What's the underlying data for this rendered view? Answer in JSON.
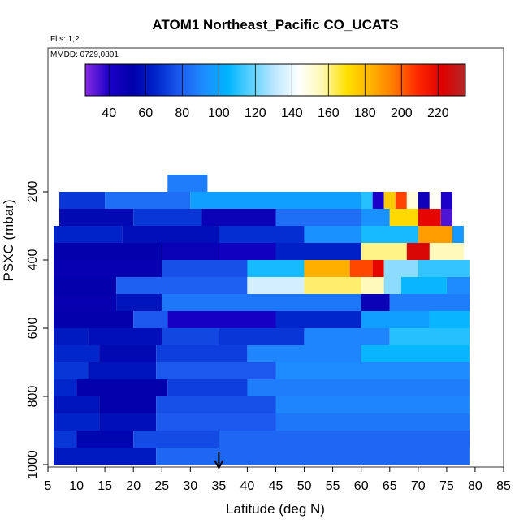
{
  "chart_data": {
    "type": "heatmap",
    "title": "ATOM1 Northeast_Pacific CO_UCATS",
    "annotations": {
      "flights": "Flts: 1,2",
      "dates": "MMDD: 0729,0801"
    },
    "xlabel": "Latitude (deg N)",
    "ylabel": "PSXC (mbar)",
    "xlim": [
      5,
      85
    ],
    "ylim": [
      1000,
      90
    ],
    "y_reversed": true,
    "xticks": [
      "5",
      "10",
      "15",
      "20",
      "25",
      "30",
      "35",
      "40",
      "45",
      "50",
      "55",
      "60",
      "65",
      "70",
      "75",
      "80",
      "85"
    ],
    "yticks": [
      "200",
      "400",
      "600",
      "800",
      "1000"
    ],
    "ytick_values": [
      200,
      400,
      600,
      800,
      1000
    ],
    "colorbar": {
      "range": [
        27,
        235
      ],
      "ticks": [
        "40",
        "60",
        "80",
        "100",
        "120",
        "140",
        "160",
        "180",
        "200",
        "220"
      ],
      "tick_values": [
        40,
        60,
        80,
        100,
        120,
        140,
        160,
        180,
        200,
        220
      ],
      "palette": [
        "#8a2be2",
        "#1a00c8",
        "#0000aa",
        "#0026cc",
        "#1e5cf0",
        "#1e8cff",
        "#00b4ff",
        "#5ed2ff",
        "#bfe8ff",
        "#ffffff",
        "#fff8b0",
        "#ffe000",
        "#ffb400",
        "#ff7800",
        "#ff2800",
        "#e00000",
        "#b42828"
      ]
    },
    "marker": {
      "latitude": 35,
      "symbol": "down-arrow"
    },
    "cell_height_mbar": 50,
    "rows": [
      {
        "p": 975,
        "segments": [
          [
            6,
            24,
            62
          ],
          [
            24,
            79,
            82
          ]
        ]
      },
      {
        "p": 925,
        "segments": [
          [
            6,
            10,
            70
          ],
          [
            10,
            20,
            55
          ],
          [
            20,
            35,
            75
          ],
          [
            35,
            79,
            82
          ]
        ]
      },
      {
        "p": 875,
        "segments": [
          [
            6,
            14,
            65
          ],
          [
            14,
            24,
            58
          ],
          [
            24,
            45,
            78
          ],
          [
            45,
            79,
            86
          ]
        ]
      },
      {
        "p": 825,
        "segments": [
          [
            6,
            14,
            60
          ],
          [
            14,
            24,
            52
          ],
          [
            24,
            45,
            76
          ],
          [
            45,
            79,
            90
          ]
        ]
      },
      {
        "p": 775,
        "segments": [
          [
            6,
            10,
            66
          ],
          [
            10,
            26,
            52
          ],
          [
            26,
            40,
            72
          ],
          [
            40,
            79,
            88
          ]
        ]
      },
      {
        "p": 725,
        "segments": [
          [
            6,
            12,
            70
          ],
          [
            12,
            24,
            60
          ],
          [
            24,
            45,
            78
          ],
          [
            45,
            79,
            92
          ]
        ]
      },
      {
        "p": 675,
        "segments": [
          [
            6,
            14,
            66
          ],
          [
            14,
            24,
            56
          ],
          [
            24,
            40,
            72
          ],
          [
            40,
            60,
            90
          ],
          [
            60,
            79,
            106
          ]
        ]
      },
      {
        "p": 625,
        "segments": [
          [
            6,
            12,
            62
          ],
          [
            12,
            25,
            58
          ],
          [
            25,
            35,
            74
          ],
          [
            35,
            50,
            70
          ],
          [
            50,
            65,
            90
          ],
          [
            65,
            79,
            110
          ]
        ]
      },
      {
        "p": 575,
        "segments": [
          [
            6,
            20,
            52
          ],
          [
            20,
            26,
            78
          ],
          [
            26,
            45,
            42
          ],
          [
            45,
            60,
            66
          ],
          [
            60,
            72,
            98
          ],
          [
            72,
            79,
            106
          ]
        ]
      },
      {
        "p": 525,
        "segments": [
          [
            6,
            17,
            50
          ],
          [
            17,
            25,
            60
          ],
          [
            25,
            60,
            86
          ],
          [
            60,
            65,
            48
          ],
          [
            65,
            79,
            88
          ]
        ]
      },
      {
        "p": 475,
        "segments": [
          [
            6,
            17,
            52
          ],
          [
            17,
            40,
            80
          ],
          [
            40,
            50,
            135
          ],
          [
            50,
            60,
            162
          ],
          [
            60,
            64,
            155
          ],
          [
            64,
            67,
            124
          ],
          [
            67,
            75,
            106
          ],
          [
            75,
            79,
            92
          ]
        ]
      },
      {
        "p": 425,
        "segments": [
          [
            6,
            25,
            50
          ],
          [
            25,
            40,
            76
          ],
          [
            40,
            50,
            108
          ],
          [
            50,
            58,
            184
          ],
          [
            58,
            62,
            204
          ],
          [
            62,
            64,
            220
          ],
          [
            64,
            70,
            124
          ],
          [
            70,
            79,
            112
          ]
        ]
      },
      {
        "p": 375,
        "segments": [
          [
            6,
            25,
            52
          ],
          [
            25,
            35,
            48
          ],
          [
            35,
            45,
            44
          ],
          [
            45,
            60,
            64
          ],
          [
            60,
            68,
            160
          ],
          [
            68,
            72,
            224
          ],
          [
            72,
            78,
            155
          ]
        ]
      },
      {
        "p": 325,
        "segments": [
          [
            6,
            18,
            65
          ],
          [
            18,
            35,
            58
          ],
          [
            35,
            50,
            68
          ],
          [
            50,
            60,
            94
          ],
          [
            60,
            70,
            108
          ],
          [
            70,
            76,
            188
          ],
          [
            76,
            78,
            96
          ]
        ]
      },
      {
        "p": 275,
        "segments": [
          [
            7,
            20,
            56
          ],
          [
            20,
            32,
            70
          ],
          [
            32,
            45,
            48
          ],
          [
            45,
            60,
            84
          ],
          [
            60,
            65,
            94
          ],
          [
            65,
            70,
            172
          ],
          [
            70,
            74,
            220
          ],
          [
            74,
            76,
            34
          ]
        ]
      },
      {
        "p": 225,
        "segments": [
          [
            7,
            15,
            70
          ],
          [
            15,
            30,
            84
          ],
          [
            30,
            60,
            98
          ],
          [
            60,
            62,
            110
          ],
          [
            62,
            64,
            40
          ],
          [
            64,
            66,
            176
          ],
          [
            66,
            68,
            205
          ],
          [
            68,
            70,
            150
          ],
          [
            70,
            72,
            45
          ],
          [
            72,
            74,
            145
          ],
          [
            74,
            76,
            40
          ]
        ]
      },
      {
        "p": 175,
        "segments": [
          [
            26,
            33,
            88
          ]
        ]
      }
    ]
  }
}
